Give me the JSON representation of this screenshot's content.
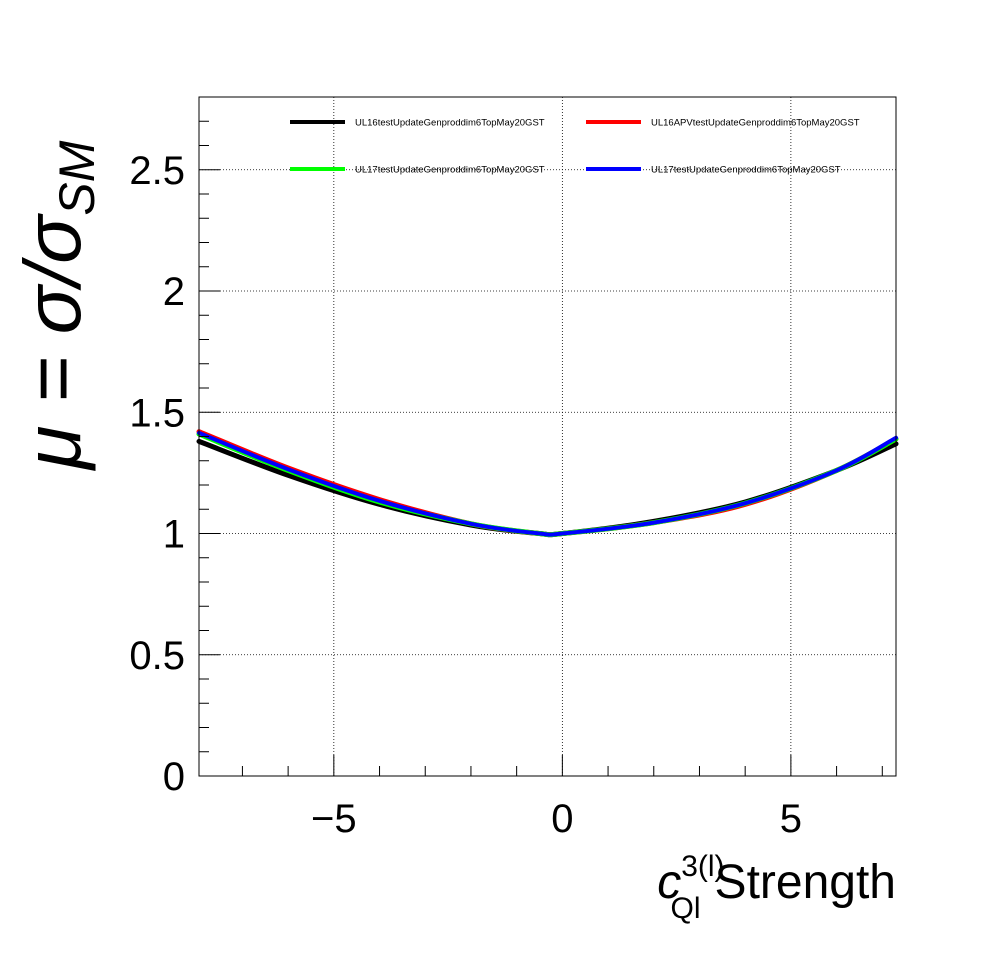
{
  "chart_data": {
    "type": "line",
    "title": "",
    "xlabel": {
      "symbol": "c",
      "superscript": "3(l)",
      "subscript": "Ql",
      "text": "Strength"
    },
    "ylabel": {
      "symbol": "μ = σ/σ",
      "subscript": "SM"
    },
    "xlim": [
      -7.95,
      7.3
    ],
    "ylim": [
      0,
      2.8
    ],
    "x_ticks": [
      -5,
      0,
      5
    ],
    "x_tick_labels": [
      "−5",
      "0",
      "5"
    ],
    "y_ticks": [
      0,
      0.5,
      1,
      1.5,
      2,
      2.5
    ],
    "y_tick_labels": [
      "0",
      "0.5",
      "1",
      "1.5",
      "2",
      "2.5"
    ],
    "grid": true,
    "legend_position": "top",
    "series": [
      {
        "name": "UL16testUpdateGenproddim6TopMay20GST",
        "color": "#000000",
        "x": [
          -7.95,
          -6,
          -4,
          -2,
          -0.5,
          0,
          2,
          4,
          6,
          7.3
        ],
        "y": [
          1.38,
          1.24,
          1.12,
          1.035,
          1.0,
          1.0,
          1.05,
          1.13,
          1.26,
          1.37
        ]
      },
      {
        "name": "UL16APVtestUpdateGenproddim6TopMay20GST",
        "color": "#ff0000",
        "x": [
          -7.95,
          -6,
          -4,
          -2,
          -0.5,
          0,
          2,
          4,
          6,
          7.3
        ],
        "y": [
          1.42,
          1.27,
          1.14,
          1.04,
          1.0,
          1.0,
          1.045,
          1.12,
          1.26,
          1.39
        ]
      },
      {
        "name": "UL17testUpdateGenproddim6TopMay20GST",
        "color": "#00ff00",
        "x": [
          -7.95,
          -6,
          -4,
          -2,
          -0.5,
          0,
          2,
          4,
          6,
          7.3
        ],
        "y": [
          1.41,
          1.26,
          1.13,
          1.04,
          1.0,
          1.0,
          1.045,
          1.125,
          1.26,
          1.39
        ]
      },
      {
        "name": "UL17testUpdateGenproddim6TopMay20GST",
        "color": "#0000ff",
        "x": [
          -7.95,
          -6,
          -4,
          -2,
          -0.5,
          0,
          2,
          4,
          6,
          7.3
        ],
        "y": [
          1.415,
          1.265,
          1.135,
          1.04,
          1.0,
          1.0,
          1.045,
          1.125,
          1.26,
          1.395
        ]
      }
    ]
  }
}
